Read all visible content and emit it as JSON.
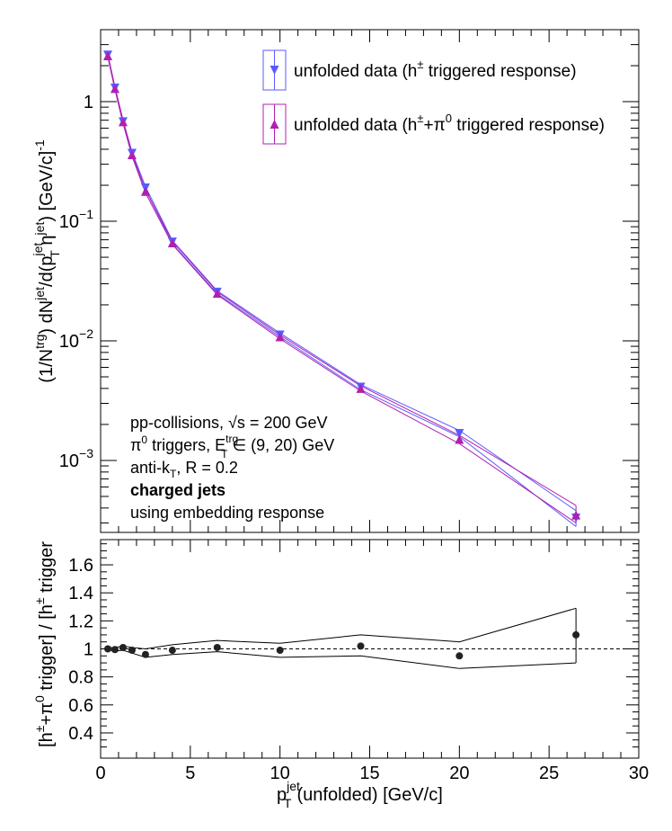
{
  "chart_data": [
    {
      "type": "line",
      "panel": "top",
      "y_scale": "log",
      "xlim": [
        0,
        30
      ],
      "ylim": [
        0.00025,
        4.0
      ],
      "ylabel": "(1/N^{trg}) dN^{jet}/d(p_{T}^{jet} η^{jet}) [GeV/c]^{-1}",
      "y_tick_labels": [
        {
          "value": 1,
          "base": "1",
          "exp": ""
        },
        {
          "value": 0.1,
          "base": "10",
          "exp": "−1"
        },
        {
          "value": 0.01,
          "base": "10",
          "exp": "−2"
        },
        {
          "value": 0.001,
          "base": "10",
          "exp": "−3"
        }
      ],
      "series": [
        {
          "name": "unfolded data (h^± triggered response)",
          "legend_base": "unfolded data (h",
          "legend_sup": "±",
          "legend_tail": " triggered response)",
          "color": "#5a5aff",
          "marker": "triangle-down",
          "x": [
            0.4,
            0.8,
            1.25,
            1.75,
            2.5,
            4.0,
            6.5,
            10.0,
            14.5,
            20.0,
            26.5
          ],
          "y": [
            2.45,
            1.3,
            0.68,
            0.37,
            0.19,
            0.067,
            0.0255,
            0.0112,
            0.0041,
            0.00168,
            0.00033
          ],
          "band_upper": [
            2.5,
            1.33,
            0.7,
            0.38,
            0.195,
            0.069,
            0.0262,
            0.0116,
            0.0043,
            0.00178,
            0.00038
          ],
          "band_lower": [
            2.4,
            1.27,
            0.66,
            0.36,
            0.185,
            0.065,
            0.0248,
            0.0108,
            0.0039,
            0.00158,
            0.00028
          ]
        },
        {
          "name": "unfolded data (h^±+π^0 triggered response)",
          "legend_base": "unfolded data (h",
          "legend_sup": "±",
          "legend_mid": "+π",
          "legend_sup2": "0",
          "legend_tail": " triggered response)",
          "color": "#b020b0",
          "marker": "triangle-up",
          "x": [
            0.4,
            0.8,
            1.25,
            1.75,
            2.5,
            4.0,
            6.5,
            10.0,
            14.5,
            20.0,
            26.5
          ],
          "y": [
            2.42,
            1.29,
            0.68,
            0.36,
            0.178,
            0.066,
            0.025,
            0.0108,
            0.004,
            0.0015,
            0.00035
          ],
          "band_upper": [
            2.47,
            1.32,
            0.7,
            0.37,
            0.183,
            0.068,
            0.0257,
            0.0112,
            0.0042,
            0.00162,
            0.00042
          ],
          "band_lower": [
            2.37,
            1.26,
            0.66,
            0.35,
            0.173,
            0.064,
            0.0243,
            0.0104,
            0.0038,
            0.00138,
            0.0003
          ]
        }
      ],
      "annotations": [
        {
          "base": "pp-collisions, √s = 200 GeV"
        },
        {
          "base": "π",
          "sup": "0",
          "mid": " triggers, E",
          "sup2": "trg",
          "sub2": "T",
          "tail": " ∈ (9, 20) GeV"
        },
        {
          "base": "anti-k",
          "sub": "T",
          "tail": ", R = 0.2"
        },
        {
          "base": "charged jets",
          "bold": true
        },
        {
          "base": "using embedding response"
        }
      ]
    },
    {
      "type": "scatter",
      "panel": "bottom",
      "xlim": [
        0,
        30
      ],
      "ylim": [
        0.22,
        1.78
      ],
      "xlabel": "p_{T}^{jet}(unfolded) [GeV/c]",
      "ylabel": "[h^±+π^0 trigger] / [h^± trigger",
      "x_ticks": [
        0,
        5,
        10,
        15,
        20,
        25,
        30
      ],
      "y_ticks": [
        0.4,
        0.6,
        0.8,
        1.0,
        1.2,
        1.4,
        1.6
      ],
      "y_tick_labels": [
        "0.4",
        "0.6",
        "0.8",
        "1",
        "1.2",
        "1.4",
        "1.6"
      ],
      "reference_line": 1.0,
      "series": [
        {
          "name": "ratio",
          "color": "#222222",
          "x": [
            0.4,
            0.8,
            1.25,
            1.75,
            2.5,
            4.0,
            6.5,
            10.0,
            14.5,
            20.0,
            26.5
          ],
          "y": [
            1.0,
            0.995,
            1.01,
            0.99,
            0.96,
            0.99,
            1.01,
            0.99,
            1.02,
            0.95,
            1.1
          ],
          "band_upper": [
            1.01,
            1.01,
            1.02,
            1.01,
            1.0,
            1.03,
            1.06,
            1.04,
            1.1,
            1.05,
            1.29
          ],
          "band_lower": [
            0.99,
            0.985,
            0.99,
            0.97,
            0.94,
            0.96,
            0.98,
            0.94,
            0.95,
            0.86,
            0.9
          ]
        }
      ]
    }
  ]
}
